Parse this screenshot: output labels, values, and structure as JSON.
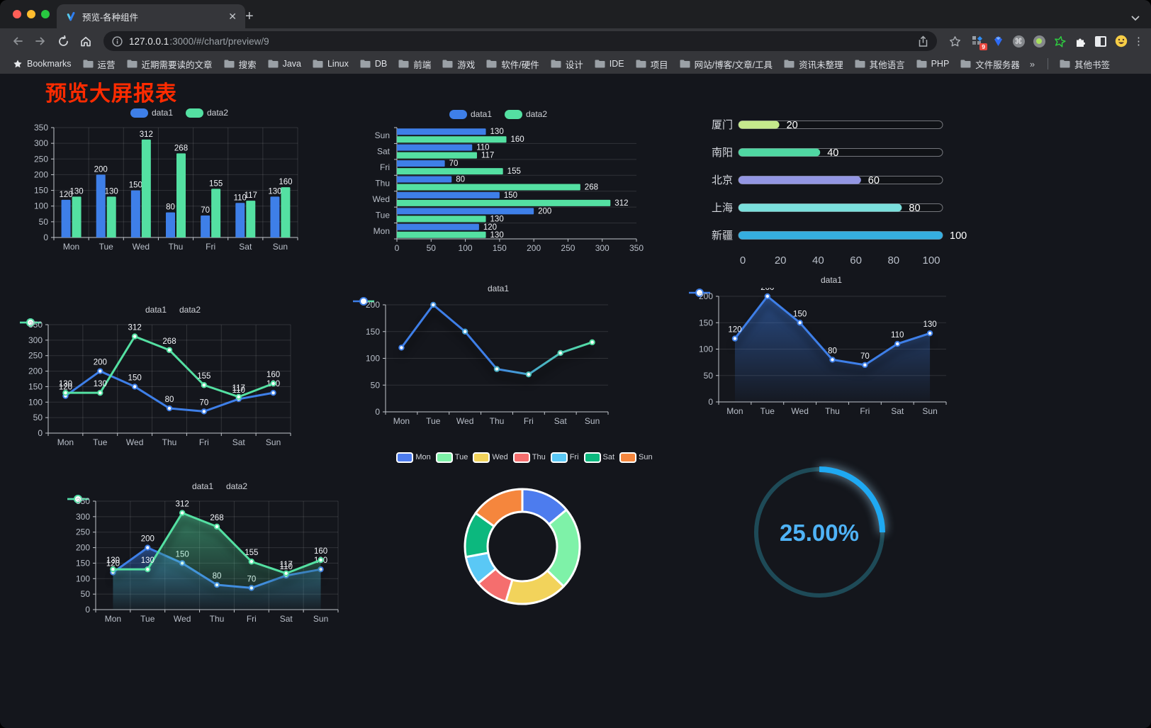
{
  "browser": {
    "tab_title": "预览-各种组件",
    "url_host": "127.0.0.1",
    "url_path": ":3000/#/chart/preview/9",
    "extensions_badge": "9",
    "bookmarks": {
      "root_label": "Bookmarks",
      "folders": [
        "运营",
        "近期需要读的文章",
        "搜索",
        "Java",
        "Linux",
        "DB",
        "前端",
        "游戏",
        "软件/硬件",
        "设计",
        "IDE",
        "项目",
        "网站/博客/文章/工具",
        "资讯未整理",
        "其他语言",
        "PHP",
        "文件服务器"
      ],
      "overflow": "»",
      "other_label": "其他书签"
    }
  },
  "page": {
    "title": "预览大屏报表"
  },
  "theme": {
    "bg": "#14161c",
    "title_color": "#ff2b00",
    "axis_line": "#c2c6cc",
    "tick_label": "#b9bfc9",
    "value_label": "#f2f4f8",
    "grid_line": "rgba(255,255,255,0.12)",
    "legend_text": "#d0d3d9"
  },
  "chart_data": [
    {
      "id": "bar-grouped",
      "type": "bar",
      "categories": [
        "Mon",
        "Tue",
        "Wed",
        "Thu",
        "Fri",
        "Sat",
        "Sun"
      ],
      "series": [
        {
          "name": "data1",
          "color": "#3e7fe8",
          "values": [
            120,
            200,
            150,
            80,
            70,
            110,
            130
          ]
        },
        {
          "name": "data2",
          "color": "#54e0a2",
          "values": [
            130,
            130,
            312,
            268,
            155,
            117,
            160
          ]
        }
      ],
      "ylim": [
        0,
        350
      ],
      "ytick_step": 50,
      "grid": {
        "h": true,
        "v": true
      },
      "legend_position": "top"
    },
    {
      "id": "bar-horizontal",
      "type": "bar",
      "orientation": "horizontal",
      "categories": [
        "Mon",
        "Tue",
        "Wed",
        "Thu",
        "Fri",
        "Sat",
        "Sun"
      ],
      "series": [
        {
          "name": "data1",
          "color": "#3e7fe8",
          "values": [
            120,
            200,
            150,
            80,
            70,
            110,
            130
          ]
        },
        {
          "name": "data2",
          "color": "#54e0a2",
          "values": [
            130,
            130,
            312,
            268,
            155,
            117,
            160
          ]
        }
      ],
      "xlim": [
        0,
        350
      ],
      "xtick_step": 50,
      "legend_position": "top"
    },
    {
      "id": "progress-bars",
      "type": "bar",
      "variant": "progress",
      "categories": [
        "厦门",
        "南阳",
        "北京",
        "上海",
        "新疆"
      ],
      "values": [
        20,
        40,
        60,
        80,
        100
      ],
      "colors": [
        "#c5e98c",
        "#4fd7a2",
        "#9396e3",
        "#7adfdc",
        "#35aee0"
      ],
      "xlim": [
        0,
        100
      ],
      "xticks": [
        0,
        20,
        40,
        60,
        80,
        100
      ]
    },
    {
      "id": "line-two-series",
      "type": "line",
      "categories": [
        "Mon",
        "Tue",
        "Wed",
        "Thu",
        "Fri",
        "Sat",
        "Sun"
      ],
      "series": [
        {
          "name": "data1",
          "color": "#3e7fe8",
          "values": [
            120,
            200,
            150,
            80,
            70,
            110,
            130
          ]
        },
        {
          "name": "data2",
          "color": "#54e0a2",
          "values": [
            130,
            130,
            312,
            268,
            155,
            117,
            160
          ]
        }
      ],
      "ylim": [
        0,
        350
      ],
      "ytick_step": 50,
      "grid": {
        "h": true,
        "v": true
      },
      "show_labels": true,
      "legend_position": "top"
    },
    {
      "id": "line-gradient",
      "type": "line",
      "categories": [
        "Mon",
        "Tue",
        "Wed",
        "Thu",
        "Fri",
        "Sat",
        "Sun"
      ],
      "series": [
        {
          "name": "data1",
          "gradient": [
            "#3e7fe8",
            "#54e0a2"
          ],
          "values": [
            120,
            200,
            150,
            80,
            70,
            110,
            130
          ]
        }
      ],
      "ylim": [
        0,
        200
      ],
      "ytick_step": 50,
      "grid": {
        "h": true,
        "v": false
      },
      "show_labels": false,
      "shadow": true,
      "legend_position": "top"
    },
    {
      "id": "area-one-series",
      "type": "area",
      "categories": [
        "Mon",
        "Tue",
        "Wed",
        "Thu",
        "Fri",
        "Sat",
        "Sun"
      ],
      "series": [
        {
          "name": "data1",
          "color": "#3e7fe8",
          "values": [
            120,
            200,
            150,
            80,
            70,
            110,
            130
          ]
        }
      ],
      "ylim": [
        0,
        200
      ],
      "ytick_step": 50,
      "grid": {
        "h": true,
        "v": false
      },
      "show_labels": true,
      "shadow": true,
      "legend_position": "top"
    },
    {
      "id": "area-two-series",
      "type": "area",
      "categories": [
        "Mon",
        "Tue",
        "Wed",
        "Thu",
        "Fri",
        "Sat",
        "Sun"
      ],
      "series": [
        {
          "name": "data1",
          "color": "#3e7fe8",
          "values": [
            120,
            200,
            150,
            80,
            70,
            110,
            130
          ]
        },
        {
          "name": "data2",
          "color": "#54e0a2",
          "values": [
            130,
            130,
            312,
            268,
            155,
            117,
            160
          ]
        }
      ],
      "ylim": [
        0,
        350
      ],
      "ytick_step": 50,
      "grid": {
        "h": true,
        "v": true
      },
      "show_labels": true,
      "shadow": true,
      "legend_position": "top"
    },
    {
      "id": "donut",
      "type": "pie",
      "donut": true,
      "categories": [
        "Mon",
        "Tue",
        "Wed",
        "Thu",
        "Fri",
        "Sat",
        "Sun"
      ],
      "values": [
        120,
        200,
        150,
        80,
        70,
        110,
        130
      ],
      "colors": [
        "#4d7cee",
        "#7ef2a8",
        "#f2d35b",
        "#f56e6e",
        "#5ac8f5",
        "#0cb87e",
        "#f5863d"
      ],
      "border_color": "#ffffff",
      "legend_position": "top"
    },
    {
      "id": "gauge",
      "type": "gauge",
      "value": 25,
      "max": 100,
      "label": "25.00%",
      "arc_color": "#1fa9f2",
      "track_color": "#1e4a57",
      "label_color": "#4fb3f7"
    }
  ]
}
